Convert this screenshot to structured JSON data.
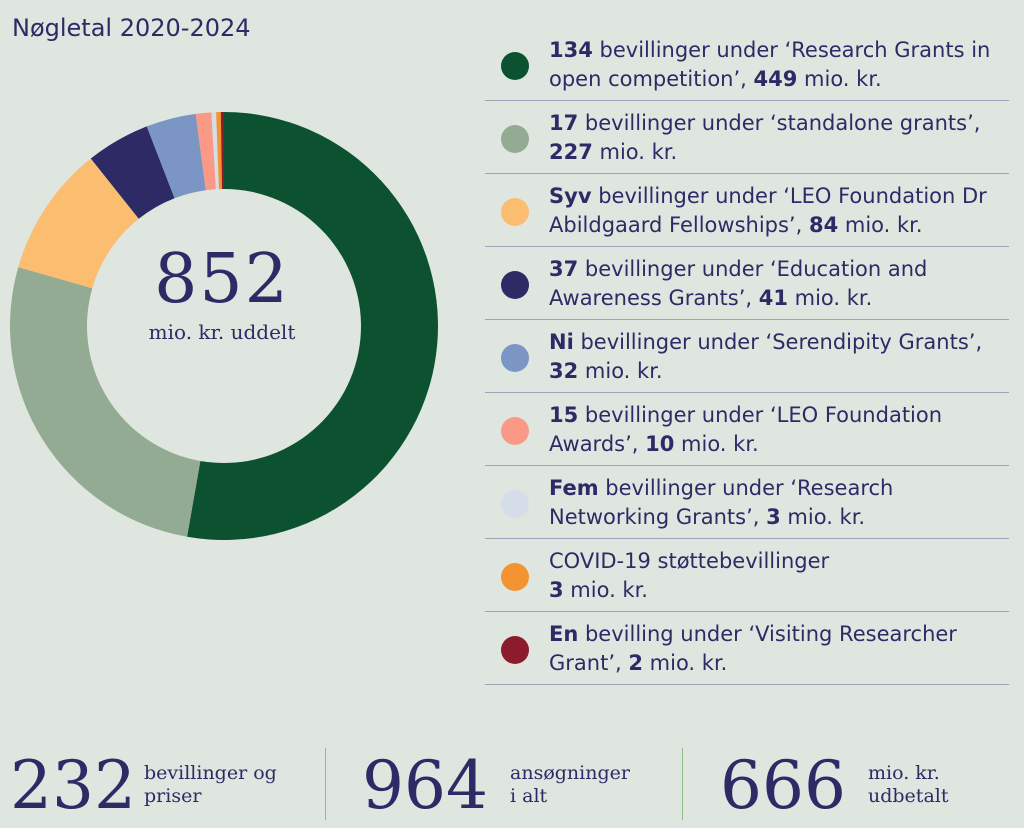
{
  "title": "Nøgletal 2020-2024",
  "center": {
    "value": "852",
    "label": "mio. kr. uddelt"
  },
  "chart_data": {
    "type": "pie",
    "donut": true,
    "title": "Nøgletal 2020-2024",
    "slices": [
      {
        "value": 449,
        "color": "#0d5230"
      },
      {
        "value": 227,
        "color": "#93ab92"
      },
      {
        "value": 84,
        "color": "#fbbd6f"
      },
      {
        "value": 41,
        "color": "#2d2a66"
      },
      {
        "value": 32,
        "color": "#7b95c4"
      },
      {
        "value": 10,
        "color": "#fa9a86"
      },
      {
        "value": 3,
        "color": "#d5dde9"
      },
      {
        "value": 3,
        "color": "#f39431"
      },
      {
        "value": 2,
        "color": "#8c1c2c"
      }
    ],
    "total": 852
  },
  "legend": [
    {
      "color": "#0d5230",
      "bold1": "134",
      "text1": " bevillinger under ‘Research Grants in open competition’, ",
      "bold2": "449",
      "text2": " mio. kr."
    },
    {
      "color": "#93ab92",
      "bold1": "17",
      "text1": " bevillinger under ‘standalone grants’, ",
      "bold2": "227",
      "text2": " mio. kr."
    },
    {
      "color": "#fbbd6f",
      "bold1": "Syv",
      "text1": " bevillinger under ‘LEO Foundation Dr Abildgaard Fellowships’, ",
      "bold2": "84",
      "text2": " mio. kr."
    },
    {
      "color": "#2d2a66",
      "bold1": "37",
      "text1": " bevillinger under ‘Education and Awareness Grants’, ",
      "bold2": "41",
      "text2": " mio. kr."
    },
    {
      "color": "#7b95c4",
      "bold1": "Ni",
      "text1": " bevillinger under ‘Serendipity Grants’, ",
      "bold2": "32",
      "text2": " mio. kr."
    },
    {
      "color": "#fa9a86",
      "bold1": "15",
      "text1": " bevillinger under ‘LEO Foundation Awards’, ",
      "bold2": "10",
      "text2": " mio. kr."
    },
    {
      "color": "#d5dde9",
      "bold1": "Fem",
      "text1": " bevillinger under ‘Research Networking Grants’, ",
      "bold2": "3",
      "text2": " mio. kr."
    },
    {
      "color": "#f39431",
      "bold1": "",
      "text1": "COVID-19 støttebevillinger ",
      "bold2": "3",
      "text2": " mio. kr."
    },
    {
      "color": "#8c1c2c",
      "bold1": "En",
      "text1": " bevilling under ‘Visiting Researcher Grant’, ",
      "bold2": "2",
      "text2": " mio. kr."
    }
  ],
  "stats": [
    {
      "value": "232",
      "label_line1": "bevillinger og",
      "label_line2": "priser"
    },
    {
      "value": "964",
      "label_line1": "ansøgninger",
      "label_line2": "i alt"
    },
    {
      "value": "666",
      "label_line1": "mio. kr.",
      "label_line2": "udbetalt"
    }
  ]
}
